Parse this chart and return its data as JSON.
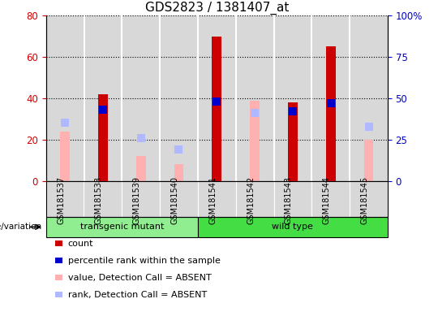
{
  "title": "GDS2823 / 1381407_at",
  "samples": [
    "GSM181537",
    "GSM181538",
    "GSM181539",
    "GSM181540",
    "GSM181541",
    "GSM181542",
    "GSM181543",
    "GSM181544",
    "GSM181545"
  ],
  "count": [
    0,
    42,
    0,
    0,
    70,
    0,
    38,
    65,
    0
  ],
  "percentile_rank": [
    null,
    43,
    null,
    null,
    48,
    null,
    42,
    47,
    null
  ],
  "value_absent": [
    24,
    null,
    12,
    8,
    null,
    39,
    null,
    null,
    20
  ],
  "rank_absent": [
    35,
    null,
    26,
    19,
    null,
    41,
    null,
    null,
    33
  ],
  "ylim_left": [
    0,
    80
  ],
  "ylim_right": [
    0,
    100
  ],
  "yticks_left": [
    0,
    20,
    40,
    60,
    80
  ],
  "ytick_labels_right": [
    "0",
    "25",
    "50",
    "75",
    "100%"
  ],
  "color_count": "#cc0000",
  "color_percentile": "#0000cc",
  "color_value_absent": "#ffb0b0",
  "color_rank_absent": "#b0b8ff",
  "group_color_transgenic": "#90ee90",
  "group_color_wild": "#44dd44",
  "bar_width": 0.25,
  "marker_size": 7,
  "title_fontsize": 11,
  "tick_fontsize": 8.5,
  "label_fontsize": 8,
  "legend_fontsize": 8
}
